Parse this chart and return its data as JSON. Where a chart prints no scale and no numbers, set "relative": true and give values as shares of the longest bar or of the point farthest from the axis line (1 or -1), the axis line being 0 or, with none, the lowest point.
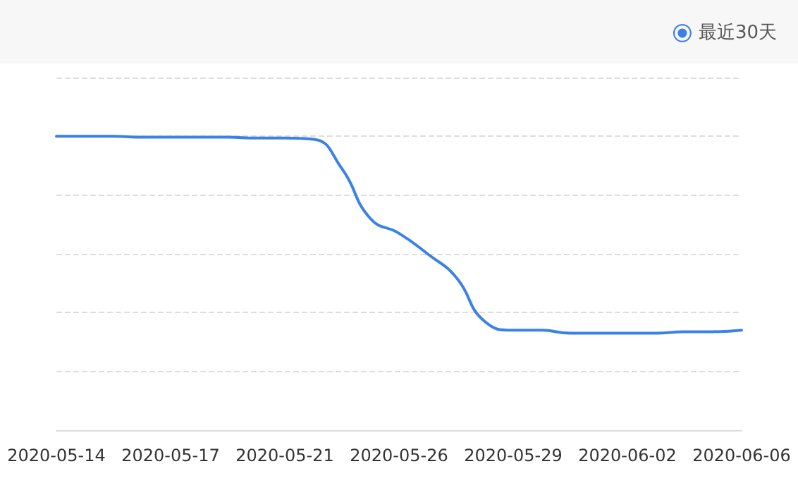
{
  "chart_data": {
    "type": "line",
    "relative": true,
    "categories": [
      "2020-05-14",
      null,
      null,
      null,
      "2020-05-17",
      null,
      null,
      null,
      "2020-05-21",
      null,
      null,
      null,
      "2020-05-26",
      null,
      null,
      null,
      "2020-05-29",
      null,
      null,
      null,
      "2020-06-02",
      null,
      null,
      null,
      "2020-06-06"
    ],
    "series": [
      {
        "name": "最近30天",
        "color": "#3b82e6",
        "values": [
          1,
          1,
          1,
          0.997,
          0.997,
          0.997,
          0.997,
          0.994,
          0.994,
          0.99,
          0.89,
          0.72,
          0.67,
          0.6,
          0.52,
          0.37,
          0.34,
          0.34,
          0.33,
          0.33,
          0.33,
          0.33,
          0.335,
          0.335,
          0.34
        ]
      }
    ],
    "grid": "y",
    "legend": "top right",
    "marker": "none",
    "line_style": "solid"
  }
}
